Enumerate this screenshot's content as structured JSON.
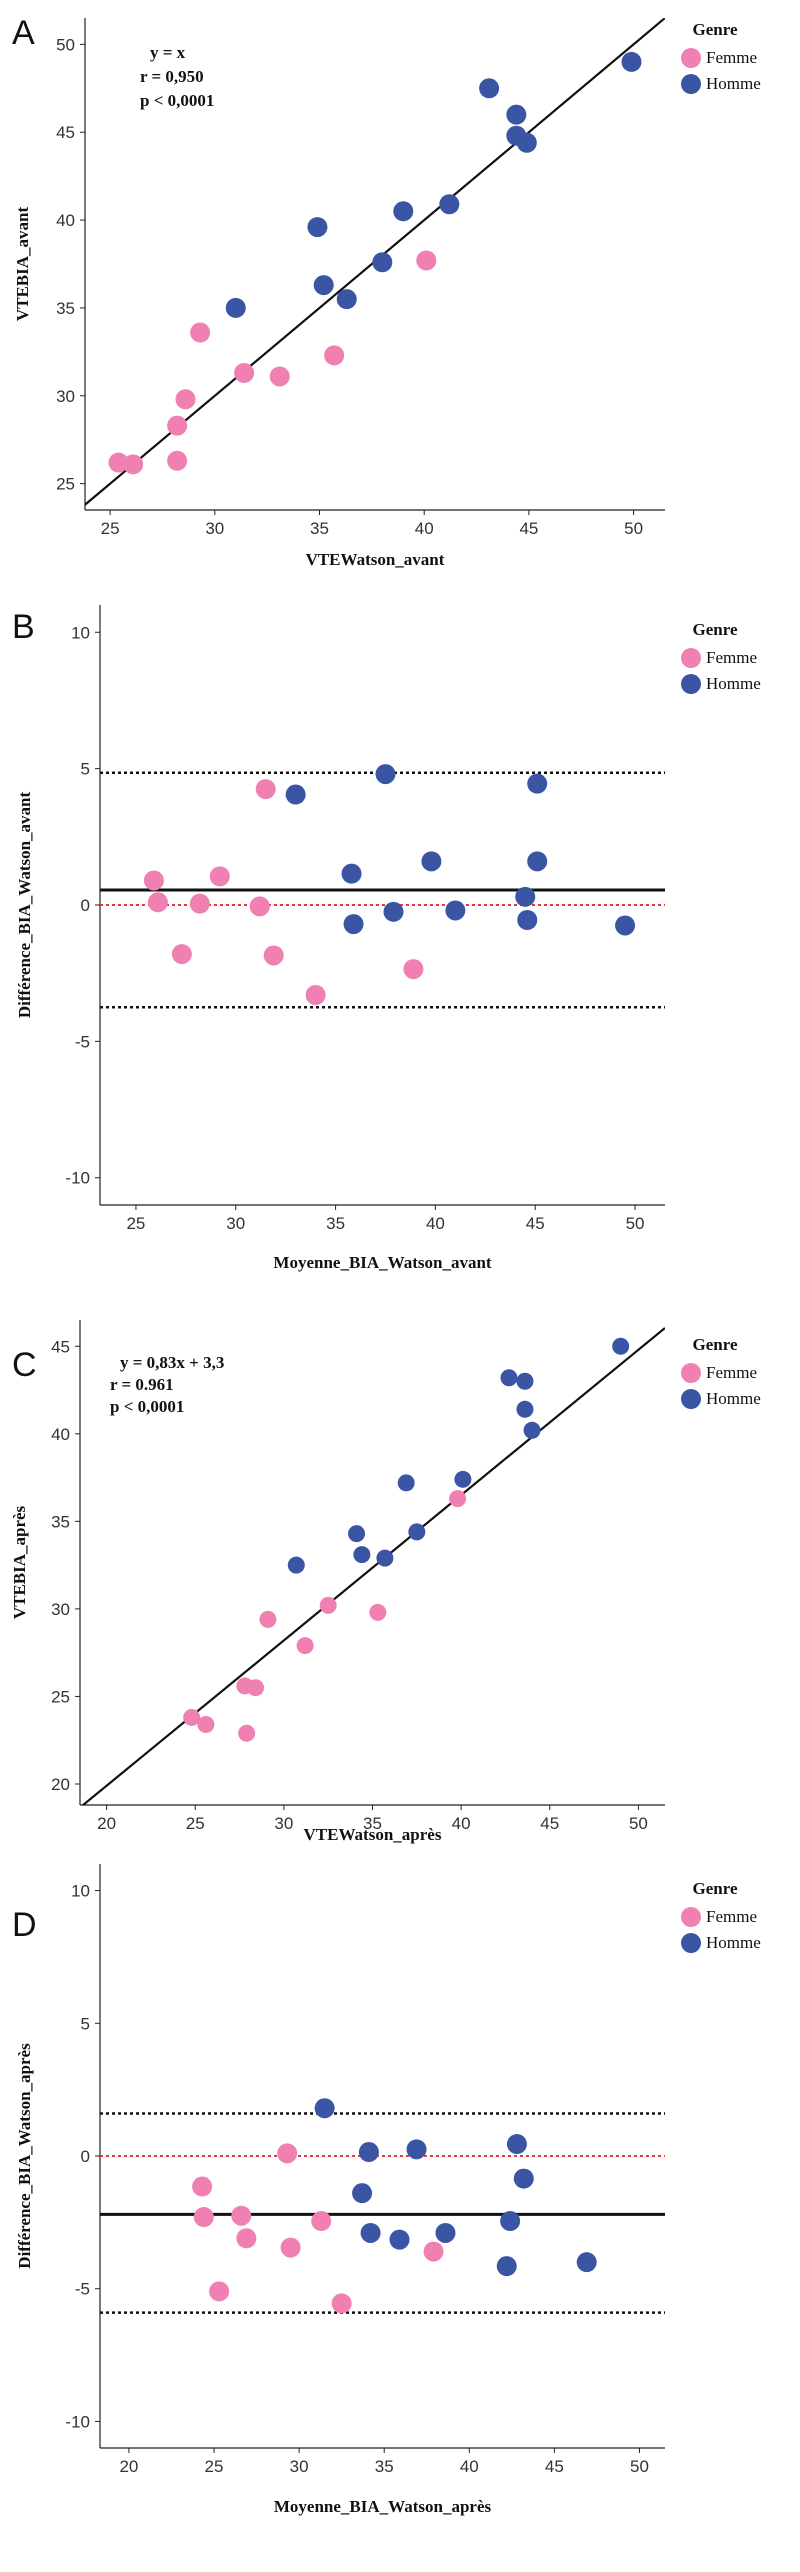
{
  "colors": {
    "femme": "#f07fb2",
    "homme": "#3a55a4",
    "line": "#111111",
    "zero": "#e8383d"
  },
  "chart_data": [
    {
      "panel": "A",
      "type": "scatter",
      "xlabel": "VTEWatson_avant",
      "ylabel": "VTEBIA_avant",
      "xlim": [
        23.8,
        51.5
      ],
      "ylim": [
        23.5,
        51.5
      ],
      "xticks": [
        25,
        30,
        35,
        40,
        45,
        50
      ],
      "yticks": [
        25,
        30,
        35,
        40,
        45,
        50
      ],
      "annotations": [
        "y = x",
        "r = 0,950",
        "p < 0,0001"
      ],
      "legend": {
        "title": "Genre",
        "entries": [
          "Femme",
          "Homme"
        ],
        "position": "top-right"
      },
      "reference_line": {
        "slope": 1,
        "intercept": 0
      },
      "series": [
        {
          "name": "Femme",
          "points": [
            [
              25.4,
              26.2
            ],
            [
              26.1,
              26.1
            ],
            [
              28.2,
              28.3
            ],
            [
              28.6,
              29.8
            ],
            [
              28.2,
              26.3
            ],
            [
              29.3,
              33.6
            ],
            [
              31.4,
              31.3
            ],
            [
              33.1,
              31.1
            ],
            [
              35.7,
              32.3
            ],
            [
              40.1,
              37.7
            ]
          ]
        },
        {
          "name": "Homme",
          "points": [
            [
              31,
              35
            ],
            [
              34.9,
              39.6
            ],
            [
              35.2,
              36.3
            ],
            [
              36.3,
              35.5
            ],
            [
              38,
              37.6
            ],
            [
              39.0,
              40.5
            ],
            [
              41.2,
              40.9
            ],
            [
              43.1,
              47.5
            ],
            [
              44.4,
              46.0
            ],
            [
              44.4,
              44.8
            ],
            [
              44.9,
              44.4
            ],
            [
              49.9,
              49.0
            ]
          ]
        }
      ]
    },
    {
      "panel": "B",
      "type": "scatter",
      "xlabel": "Moyenne_BIA_Watson_avant",
      "ylabel": "Différence_BIA_Watson_avant",
      "xlim": [
        23.2,
        51.5
      ],
      "ylim": [
        -11,
        11
      ],
      "xticks": [
        25,
        30,
        35,
        40,
        45,
        50
      ],
      "yticks": [
        10,
        5,
        0,
        -5,
        -10
      ],
      "legend": {
        "title": "Genre",
        "entries": [
          "Femme",
          "Homme"
        ],
        "position": "top-right"
      },
      "mean_line": 0.55,
      "limits": [
        4.85,
        -3.75
      ],
      "zero_line": 0,
      "series": [
        {
          "name": "Femme",
          "points": [
            [
              25.9,
              0.9
            ],
            [
              26.1,
              0.1
            ],
            [
              27.3,
              -1.8
            ],
            [
              28.2,
              0.05
            ],
            [
              29.2,
              1.05
            ],
            [
              31.2,
              -0.05
            ],
            [
              31.5,
              4.25
            ],
            [
              31.9,
              -1.85
            ],
            [
              34,
              -3.3
            ],
            [
              38.9,
              -2.35
            ]
          ]
        },
        {
          "name": "Homme",
          "points": [
            [
              33,
              4.05
            ],
            [
              35.8,
              1.15
            ],
            [
              35.9,
              -0.7
            ],
            [
              37.5,
              4.8
            ],
            [
              37.9,
              -0.25
            ],
            [
              39.8,
              1.6
            ],
            [
              41,
              -0.2
            ],
            [
              44.5,
              0.3
            ],
            [
              44.6,
              -0.55
            ],
            [
              45.1,
              4.45
            ],
            [
              45.1,
              1.6
            ],
            [
              49.5,
              -0.75
            ]
          ]
        }
      ]
    },
    {
      "panel": "C",
      "type": "scatter",
      "xlabel": "VTEWatson_après",
      "ylabel": "VTEBIA_après",
      "xlim": [
        18.5,
        51.5
      ],
      "ylim": [
        18.8,
        46.5
      ],
      "xticks": [
        20,
        25,
        30,
        35,
        40,
        45,
        50
      ],
      "yticks": [
        20,
        25,
        30,
        35,
        40,
        45
      ],
      "annotations": [
        "y = 0,83x + 3,3",
        "r = 0.961",
        "p < 0,0001"
      ],
      "legend": {
        "title": "Genre",
        "entries": [
          "Femme",
          "Homme"
        ],
        "position": "top-right"
      },
      "reference_line": {
        "slope": 0.83,
        "intercept": 3.3
      },
      "series": [
        {
          "name": "Femme",
          "points": [
            [
              24.8,
              23.8
            ],
            [
              25.6,
              23.4
            ],
            [
              27.8,
              25.6
            ],
            [
              28.4,
              25.5
            ],
            [
              27.9,
              22.9
            ],
            [
              29.1,
              29.4
            ],
            [
              31.2,
              27.9
            ],
            [
              32.5,
              30.2
            ],
            [
              35.3,
              29.8
            ],
            [
              39.8,
              36.3
            ]
          ]
        },
        {
          "name": "Homme",
          "points": [
            [
              30.7,
              32.5
            ],
            [
              34.1,
              34.3
            ],
            [
              34.4,
              33.1
            ],
            [
              35.7,
              32.9
            ],
            [
              36.9,
              37.2
            ],
            [
              37.5,
              34.4
            ],
            [
              40.1,
              37.4
            ],
            [
              42.7,
              43.2
            ],
            [
              43.6,
              43.0
            ],
            [
              43.6,
              41.4
            ],
            [
              44.0,
              40.2
            ],
            [
              49.0,
              45.0
            ]
          ]
        }
      ]
    },
    {
      "panel": "D",
      "type": "scatter",
      "xlabel": "Moyenne_BIA_Watson_après",
      "ylabel": "Différence_BIA_Watson_après",
      "xlim": [
        18.3,
        51.5
      ],
      "ylim": [
        -11,
        11
      ],
      "xticks": [
        20,
        25,
        30,
        35,
        40,
        45,
        50
      ],
      "yticks": [
        10,
        5,
        0,
        -5,
        -10
      ],
      "legend": {
        "title": "Genre",
        "entries": [
          "Femme",
          "Homme"
        ],
        "position": "top-right"
      },
      "mean_line": -2.2,
      "limits": [
        1.6,
        -5.9
      ],
      "zero_line": 0,
      "series": [
        {
          "name": "Femme",
          "points": [
            [
              24.3,
              -1.15
            ],
            [
              24.4,
              -2.3
            ],
            [
              25.3,
              -5.1
            ],
            [
              26.6,
              -2.25
            ],
            [
              26.9,
              -3.1
            ],
            [
              29.3,
              0.1
            ],
            [
              29.5,
              -3.45
            ],
            [
              31.3,
              -2.45
            ],
            [
              32.5,
              -5.55
            ],
            [
              37.9,
              -3.6
            ]
          ]
        },
        {
          "name": "Homme",
          "points": [
            [
              31.5,
              1.8
            ],
            [
              33.7,
              -1.4
            ],
            [
              34.1,
              0.15
            ],
            [
              34.2,
              -2.9
            ],
            [
              35.9,
              -3.15
            ],
            [
              36.9,
              0.25
            ],
            [
              38.6,
              -2.9
            ],
            [
              42.2,
              -4.15
            ],
            [
              42.4,
              -2.45
            ],
            [
              42.8,
              0.45
            ],
            [
              43.2,
              -0.85
            ],
            [
              46.9,
              -4.0
            ]
          ]
        }
      ]
    }
  ]
}
